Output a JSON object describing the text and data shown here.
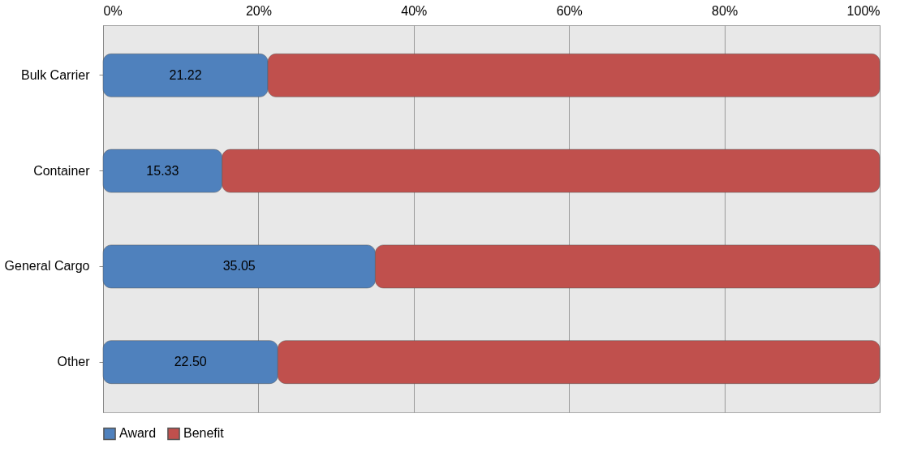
{
  "chart_data": {
    "type": "bar",
    "orientation": "horizontal",
    "stacked": true,
    "categories": [
      "Bulk Carrier",
      "Container",
      "General Cargo",
      "Other"
    ],
    "series": [
      {
        "name": "Award",
        "color": "#4f81bd",
        "values": [
          21.22,
          15.33,
          35.05,
          22.5
        ],
        "value_labels": [
          "21.22",
          "15.33",
          "35.05",
          "22.50"
        ]
      },
      {
        "name": "Benefit",
        "color": "#c0504d",
        "values": [
          78.78,
          84.67,
          64.95,
          77.5
        ]
      }
    ],
    "xlim": [
      0,
      100
    ],
    "xticks": [
      {
        "value": 0,
        "label": "0%"
      },
      {
        "value": 20,
        "label": "20%"
      },
      {
        "value": 40,
        "label": "40%"
      },
      {
        "value": 60,
        "label": "60%"
      },
      {
        "value": 80,
        "label": "80%"
      },
      {
        "value": 100,
        "label": "100%"
      }
    ],
    "grid": "x",
    "legend": "bottom"
  }
}
